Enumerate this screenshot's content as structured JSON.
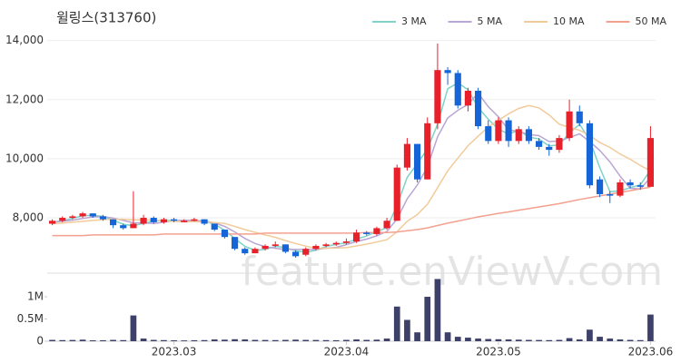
{
  "chart_data": {
    "type": "candlestick",
    "title": "윌링스(313760)",
    "watermark": "feature.enViewV.com",
    "categories": [
      null,
      null,
      null,
      null,
      null,
      null,
      null,
      null,
      null,
      null,
      null,
      null,
      "2023.03",
      null,
      null,
      null,
      null,
      null,
      null,
      null,
      null,
      null,
      null,
      null,
      null,
      null,
      null,
      null,
      null,
      "2023.04",
      null,
      null,
      null,
      null,
      null,
      null,
      null,
      null,
      null,
      null,
      null,
      null,
      null,
      null,
      "2023.05",
      null,
      null,
      null,
      null,
      null,
      null,
      null,
      null,
      null,
      null,
      null,
      null,
      null,
      null,
      "2023.06"
    ],
    "up_color": "#e8202a",
    "down_color": "#1565d8",
    "volume_color": "#3d4068",
    "ohlc": [
      [
        7800,
        7950,
        7750,
        7900
      ],
      [
        7900,
        8050,
        7850,
        8000
      ],
      [
        8000,
        8100,
        7950,
        8050
      ],
      [
        8050,
        8200,
        8000,
        8150
      ],
      [
        8150,
        8150,
        8000,
        8050
      ],
      [
        8050,
        8100,
        7900,
        7950
      ],
      [
        7950,
        7950,
        7650,
        7750
      ],
      [
        7750,
        7800,
        7600,
        7650
      ],
      [
        7650,
        8900,
        7650,
        7800
      ],
      [
        7800,
        8100,
        7750,
        8000
      ],
      [
        8000,
        8050,
        7800,
        7850
      ],
      [
        7850,
        8000,
        7800,
        7950
      ],
      [
        7950,
        8000,
        7850,
        7900
      ],
      [
        7850,
        7950,
        7850,
        7900
      ],
      [
        7900,
        8000,
        7880,
        7950
      ],
      [
        7950,
        7950,
        7750,
        7800
      ],
      [
        7800,
        7800,
        7550,
        7600
      ],
      [
        7600,
        7600,
        7300,
        7350
      ],
      [
        7350,
        7350,
        6900,
        6950
      ],
      [
        6950,
        7000,
        6750,
        6800
      ],
      [
        6800,
        7000,
        6800,
        6950
      ],
      [
        6950,
        7100,
        6900,
        7050
      ],
      [
        7050,
        7200,
        7000,
        7100
      ],
      [
        7100,
        7100,
        6800,
        6850
      ],
      [
        6850,
        6900,
        6650,
        6700
      ],
      [
        6750,
        7000,
        6700,
        6950
      ],
      [
        6950,
        7100,
        6900,
        7050
      ],
      [
        7050,
        7150,
        7000,
        7100
      ],
      [
        7100,
        7200,
        7050,
        7150
      ],
      [
        7150,
        7300,
        7100,
        7200
      ],
      [
        7200,
        7600,
        7150,
        7500
      ],
      [
        7500,
        7550,
        7400,
        7450
      ],
      [
        7450,
        7700,
        7400,
        7650
      ],
      [
        7650,
        8000,
        7600,
        7900
      ],
      [
        7900,
        9800,
        7900,
        9700
      ],
      [
        9700,
        10700,
        9600,
        10500
      ],
      [
        10500,
        10500,
        9200,
        9300
      ],
      [
        9300,
        11400,
        9300,
        11200
      ],
      [
        11200,
        13900,
        11000,
        13000
      ],
      [
        13000,
        13100,
        12500,
        12900
      ],
      [
        12900,
        13000,
        11700,
        11800
      ],
      [
        11800,
        12400,
        11600,
        12300
      ],
      [
        12300,
        12400,
        11000,
        11100
      ],
      [
        11100,
        11300,
        10500,
        10600
      ],
      [
        10600,
        11400,
        10500,
        11300
      ],
      [
        11300,
        11400,
        10400,
        10600
      ],
      [
        10600,
        11100,
        10500,
        11000
      ],
      [
        11000,
        11100,
        10500,
        10600
      ],
      [
        10600,
        10700,
        10300,
        10400
      ],
      [
        10400,
        10500,
        10100,
        10300
      ],
      [
        10300,
        10800,
        10200,
        10700
      ],
      [
        10700,
        12000,
        10600,
        11600
      ],
      [
        11600,
        11800,
        11100,
        11200
      ],
      [
        11200,
        11300,
        9000,
        9100
      ],
      [
        9300,
        9400,
        8700,
        8800
      ],
      [
        8800,
        8900,
        8500,
        8750
      ],
      [
        8750,
        9300,
        8700,
        9200
      ],
      [
        9200,
        9300,
        9000,
        9100
      ],
      [
        9100,
        9200,
        8950,
        9050
      ],
      [
        9050,
        11100,
        9050,
        10700
      ]
    ],
    "volume": [
      30000,
      25000,
      28000,
      35000,
      20000,
      22000,
      30000,
      25000,
      580000,
      60000,
      30000,
      25000,
      20000,
      18000,
      22000,
      25000,
      40000,
      35000,
      45000,
      40000,
      30000,
      28000,
      25000,
      30000,
      35000,
      30000,
      28000,
      25000,
      22000,
      30000,
      40000,
      30000,
      35000,
      60000,
      780000,
      480000,
      200000,
      1000000,
      1400000,
      200000,
      100000,
      80000,
      60000,
      50000,
      45000,
      40000,
      35000,
      30000,
      28000,
      25000,
      30000,
      70000,
      40000,
      260000,
      100000,
      60000,
      40000,
      30000,
      25000,
      600000
    ],
    "ma": [
      {
        "name": "3 MA",
        "color": "#7fd3c8",
        "values": [
          7850,
          7900,
          7983,
          8067,
          8083,
          8050,
          7917,
          7783,
          7733,
          7817,
          7883,
          7933,
          7900,
          7917,
          7917,
          7883,
          7783,
          7583,
          7300,
          7033,
          6900,
          6933,
          7033,
          7000,
          6883,
          6833,
          6900,
          7033,
          7100,
          7150,
          7283,
          7383,
          7533,
          7667,
          8417,
          9367,
          9833,
          10333,
          11167,
          12367,
          12567,
          12333,
          11733,
          11333,
          11000,
          10833,
          10967,
          10733,
          10667,
          10433,
          10467,
          10867,
          11167,
          10633,
          9700,
          8883,
          8917,
          9017,
          9117,
          9617
        ]
      },
      {
        "name": "5 MA",
        "color": "#b9a6d4",
        "values": [
          7850,
          7880,
          7920,
          7980,
          8030,
          8040,
          7990,
          7910,
          7830,
          7830,
          7810,
          7850,
          7900,
          7920,
          7910,
          7890,
          7830,
          7710,
          7520,
          7300,
          7130,
          7020,
          6970,
          6930,
          6930,
          6930,
          6930,
          6970,
          7000,
          7090,
          7200,
          7280,
          7390,
          7540,
          7960,
          8640,
          9110,
          9720,
          10740,
          11380,
          11640,
          11840,
          12220,
          11760,
          11420,
          10980,
          10920,
          10820,
          10780,
          10580,
          10600,
          10720,
          10840,
          10580,
          10280,
          9890,
          9410,
          9000,
          8980,
          9360
        ]
      },
      {
        "name": "10 MA",
        "color": "#f2cb9a",
        "values": [
          7800,
          7820,
          7850,
          7880,
          7910,
          7940,
          7950,
          7950,
          7930,
          7930,
          7920,
          7900,
          7880,
          7870,
          7870,
          7860,
          7840,
          7810,
          7710,
          7600,
          7510,
          7420,
          7340,
          7230,
          7130,
          7040,
          6970,
          6970,
          6980,
          6990,
          7050,
          7110,
          7180,
          7260,
          7530,
          7880,
          8110,
          8460,
          9020,
          9590,
          10020,
          10440,
          10760,
          11080,
          11300,
          11520,
          11700,
          11800,
          11720,
          11480,
          11170,
          11060,
          10960,
          10790,
          10550,
          10380,
          10160,
          9980,
          9770,
          9590
        ]
      },
      {
        "name": "50 MA",
        "color": "#f4a08f",
        "values": [
          7400,
          7400,
          7400,
          7400,
          7420,
          7420,
          7420,
          7420,
          7420,
          7420,
          7420,
          7450,
          7450,
          7450,
          7450,
          7450,
          7450,
          7450,
          7450,
          7450,
          7450,
          7480,
          7480,
          7480,
          7480,
          7480,
          7480,
          7480,
          7480,
          7480,
          7480,
          7500,
          7500,
          7500,
          7520,
          7560,
          7600,
          7660,
          7740,
          7820,
          7890,
          7960,
          8030,
          8090,
          8150,
          8200,
          8260,
          8310,
          8370,
          8420,
          8480,
          8550,
          8620,
          8680,
          8740,
          8800,
          8860,
          8920,
          8980,
          9040
        ]
      }
    ],
    "ylim": [
      6250,
      14450
    ],
    "yticks": [
      {
        "value": 8000,
        "label": "8,000"
      },
      {
        "value": 10000,
        "label": "10,000"
      },
      {
        "value": 12000,
        "label": "12,000"
      },
      {
        "value": 14000,
        "label": "14,000"
      }
    ],
    "vol_ylim": [
      0,
      1450000
    ],
    "vol_yticks": [
      0,
      {
        "value": 500000,
        "label": "0.5M"
      },
      {
        "value": 1000000,
        "label": "1M"
      }
    ],
    "grid": true
  }
}
